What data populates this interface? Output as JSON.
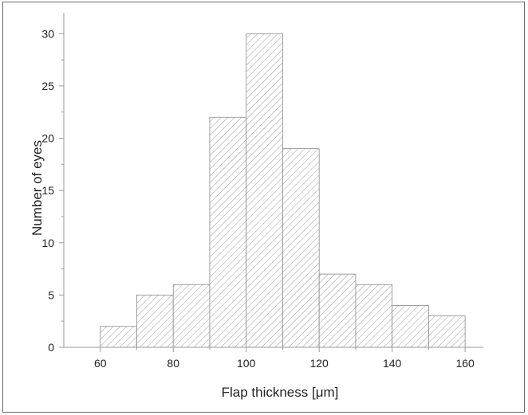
{
  "chart_data": {
    "type": "bar",
    "subtype": "histogram",
    "title": "",
    "xlabel": "Flap thickness [μm]",
    "ylabel": "Number of eyes",
    "bins": [
      {
        "start": 60,
        "end": 70,
        "value": 2
      },
      {
        "start": 70,
        "end": 80,
        "value": 5
      },
      {
        "start": 80,
        "end": 90,
        "value": 6
      },
      {
        "start": 90,
        "end": 100,
        "value": 22
      },
      {
        "start": 100,
        "end": 110,
        "value": 30
      },
      {
        "start": 110,
        "end": 120,
        "value": 19
      },
      {
        "start": 120,
        "end": 130,
        "value": 7
      },
      {
        "start": 130,
        "end": 140,
        "value": 6
      },
      {
        "start": 140,
        "end": 150,
        "value": 4
      },
      {
        "start": 150,
        "end": 160,
        "value": 3
      }
    ],
    "xlim": [
      50,
      165
    ],
    "ylim": [
      0,
      32
    ],
    "xticks": [
      60,
      80,
      100,
      120,
      140,
      160
    ],
    "yticks": [
      0,
      5,
      10,
      15,
      20,
      25,
      30
    ],
    "grid": false,
    "legend": "none",
    "colors": {
      "bar_edge": "#8a8a8a",
      "hatch": "#9a9a9a",
      "axis": "#9a9a9a"
    }
  }
}
